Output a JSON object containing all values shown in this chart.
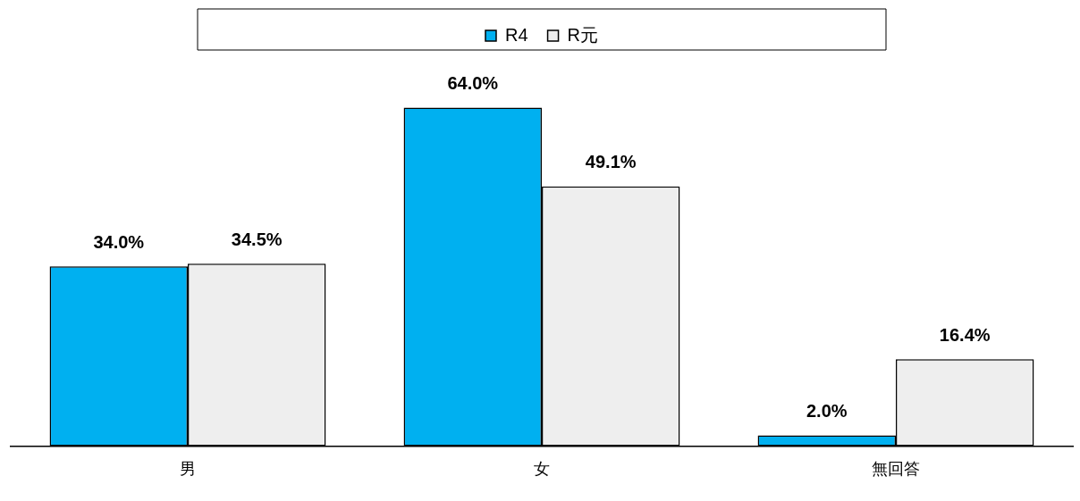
{
  "chart_data": {
    "type": "bar",
    "categories": [
      "男",
      "女",
      "無回答"
    ],
    "series": [
      {
        "name": "R4",
        "color": "#00b0f0",
        "values": [
          34.0,
          64.0,
          2.0
        ],
        "value_labels": [
          "34.0%",
          "64.0%",
          "2.0%"
        ]
      },
      {
        "name": "R元",
        "color": "#eeeeee",
        "values": [
          34.5,
          49.1,
          16.4
        ],
        "value_labels": [
          "34.5%",
          "49.1%",
          "16.4%"
        ]
      }
    ],
    "legend": "top",
    "grid": false
  }
}
